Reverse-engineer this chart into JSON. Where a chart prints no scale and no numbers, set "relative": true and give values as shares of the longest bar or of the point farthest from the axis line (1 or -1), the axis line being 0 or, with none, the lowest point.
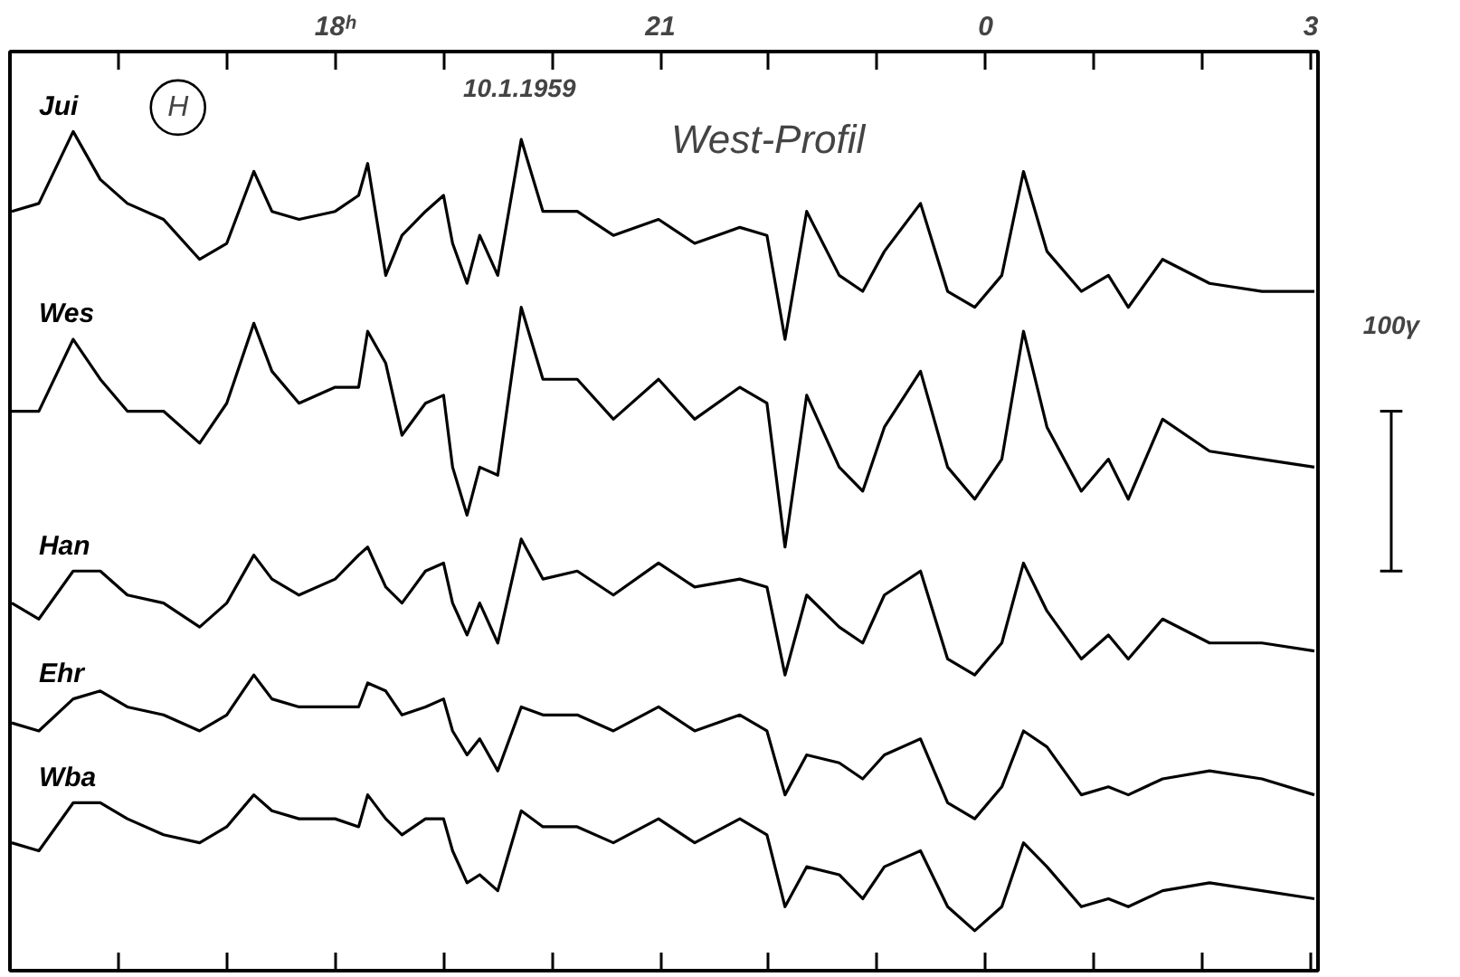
{
  "chart_data": {
    "type": "line",
    "relative": true,
    "line_style": "solid",
    "x": [
      "1959-01-10T15:01",
      "1959-01-10T15:16",
      "1959-01-10T15:35",
      "1959-01-10T15:50",
      "1959-01-10T16:05",
      "1959-01-10T16:25",
      "1959-01-10T16:45",
      "1959-01-10T17:00",
      "1959-01-10T17:15",
      "1959-01-10T17:25",
      "1959-01-10T17:40",
      "1959-01-10T18:00",
      "1959-01-10T18:13",
      "1959-01-10T18:18",
      "1959-01-10T18:28",
      "1959-01-10T18:37",
      "1959-01-10T18:50",
      "1959-01-10T19:00",
      "1959-01-10T19:05",
      "1959-01-10T19:13",
      "1959-01-10T19:20",
      "1959-01-10T19:30",
      "1959-01-10T19:43",
      "1959-01-10T19:55",
      "1959-01-10T20:14",
      "1959-01-10T20:34",
      "1959-01-10T20:59",
      "1959-01-10T21:19",
      "1959-01-10T21:44",
      "1959-01-10T21:59",
      "1959-01-10T22:09",
      "1959-01-10T22:21",
      "1959-01-10T22:39",
      "1959-01-10T22:52",
      "1959-01-10T23:04",
      "1959-01-10T23:24",
      "1959-01-10T23:39",
      "1959-01-10T23:54",
      "1959-01-11T00:09",
      "1959-01-11T00:21",
      "1959-01-11T00:34",
      "1959-01-11T00:53",
      "1959-01-11T01:08",
      "1959-01-11T01:19",
      "1959-01-11T01:38",
      "1959-01-11T02:04",
      "1959-01-11T02:33",
      "1959-01-11T03:02"
    ],
    "series": [
      {
        "name": "Jui",
        "color": "#000000",
        "values": [
          0.9,
          0.91,
          1.0,
          0.94,
          0.91,
          0.89,
          0.84,
          0.86,
          0.95,
          0.9,
          0.89,
          0.9,
          0.92,
          0.96,
          0.82,
          0.87,
          0.9,
          0.92,
          0.86,
          0.81,
          0.87,
          0.82,
          0.99,
          0.9,
          0.9,
          0.87,
          0.89,
          0.86,
          0.88,
          0.87,
          0.74,
          0.9,
          0.82,
          0.8,
          0.85,
          0.91,
          0.8,
          0.78,
          0.82,
          0.95,
          0.85,
          0.8,
          0.82,
          0.78,
          0.84,
          0.81,
          0.8,
          0.8
        ]
      },
      {
        "name": "Wes",
        "color": "#000000",
        "values": [
          0.65,
          0.65,
          0.74,
          0.69,
          0.65,
          0.65,
          0.61,
          0.66,
          0.76,
          0.7,
          0.66,
          0.68,
          0.68,
          0.75,
          0.71,
          0.62,
          0.66,
          0.67,
          0.58,
          0.52,
          0.58,
          0.57,
          0.78,
          0.69,
          0.69,
          0.64,
          0.69,
          0.64,
          0.68,
          0.66,
          0.48,
          0.67,
          0.58,
          0.55,
          0.63,
          0.7,
          0.58,
          0.54,
          0.59,
          0.75,
          0.63,
          0.55,
          0.59,
          0.54,
          0.64,
          0.6,
          0.59,
          0.58
        ]
      },
      {
        "name": "Han",
        "color": "#000000",
        "values": [
          0.41,
          0.39,
          0.45,
          0.45,
          0.42,
          0.41,
          0.38,
          0.41,
          0.47,
          0.44,
          0.42,
          0.44,
          0.47,
          0.48,
          0.43,
          0.41,
          0.45,
          0.46,
          0.41,
          0.37,
          0.41,
          0.36,
          0.49,
          0.44,
          0.45,
          0.42,
          0.46,
          0.43,
          0.44,
          0.43,
          0.32,
          0.42,
          0.38,
          0.36,
          0.42,
          0.45,
          0.34,
          0.32,
          0.36,
          0.46,
          0.4,
          0.34,
          0.37,
          0.34,
          0.39,
          0.36,
          0.36,
          0.35
        ]
      },
      {
        "name": "Ehr",
        "color": "#000000",
        "values": [
          0.26,
          0.25,
          0.29,
          0.3,
          0.28,
          0.27,
          0.25,
          0.27,
          0.32,
          0.29,
          0.28,
          0.28,
          0.28,
          0.31,
          0.3,
          0.27,
          0.28,
          0.29,
          0.25,
          0.22,
          0.24,
          0.2,
          0.28,
          0.27,
          0.27,
          0.25,
          0.28,
          0.25,
          0.27,
          0.25,
          0.17,
          0.22,
          0.21,
          0.19,
          0.22,
          0.24,
          0.16,
          0.14,
          0.18,
          0.25,
          0.23,
          0.17,
          0.18,
          0.17,
          0.19,
          0.2,
          0.19,
          0.17
        ]
      },
      {
        "name": "Wba",
        "color": "#000000",
        "values": [
          0.11,
          0.1,
          0.16,
          0.16,
          0.14,
          0.12,
          0.11,
          0.13,
          0.17,
          0.15,
          0.14,
          0.14,
          0.13,
          0.17,
          0.14,
          0.12,
          0.14,
          0.14,
          0.1,
          0.06,
          0.07,
          0.05,
          0.15,
          0.13,
          0.13,
          0.11,
          0.14,
          0.11,
          0.14,
          0.12,
          0.03,
          0.08,
          0.07,
          0.04,
          0.08,
          0.1,
          0.03,
          0.0,
          0.03,
          0.11,
          0.08,
          0.03,
          0.04,
          0.03,
          0.05,
          0.06,
          0.05,
          0.04
        ]
      }
    ],
    "xlim": [
      "1959-01-10T15:00",
      "1959-01-11T03:04"
    ],
    "xticks": [
      {
        "value": "1959-01-10T16:00",
        "label": null
      },
      {
        "value": "1959-01-10T17:00",
        "label": null
      },
      {
        "value": "1959-01-10T18:00",
        "label": "18ʰ"
      },
      {
        "value": "1959-01-10T19:00",
        "label": null
      },
      {
        "value": "1959-01-10T20:00",
        "label": null
      },
      {
        "value": "1959-01-10T21:00",
        "label": "21"
      },
      {
        "value": "1959-01-10T22:00",
        "label": null
      },
      {
        "value": "1959-01-10T23:00",
        "label": null
      },
      {
        "value": "1959-01-11T00:00",
        "label": "0"
      },
      {
        "value": "1959-01-11T01:00",
        "label": null
      },
      {
        "value": "1959-01-11T02:00",
        "label": null
      },
      {
        "value": "1959-01-11T03:00",
        "label": "3"
      }
    ],
    "annotations": [
      "H",
      "10.1.1959",
      "West-Profil",
      "100γ"
    ]
  }
}
